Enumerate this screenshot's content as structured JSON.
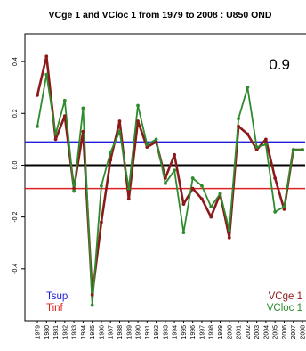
{
  "chart_data": {
    "type": "line",
    "title": "VCge 1 and VCloc 1 from 1979 to 2008 : U850 OND",
    "correlation_label": "0.9",
    "x": [
      1979,
      1980,
      1981,
      1982,
      1983,
      1984,
      1985,
      1986,
      1987,
      1988,
      1989,
      1990,
      1991,
      1992,
      1993,
      1994,
      1995,
      1996,
      1997,
      1998,
      1999,
      2000,
      2001,
      2002,
      2003,
      2004,
      2005,
      2006,
      2007,
      2008
    ],
    "ylim": [
      -0.6,
      0.5
    ],
    "yticks": [
      -0.4,
      -0.2,
      0.0,
      0.2,
      0.4
    ],
    "ytick_labels": [
      "-0.4",
      "-0.2",
      "0.0",
      "0.2",
      "0.4"
    ],
    "grid": false,
    "series": [
      {
        "name": "VCge 1",
        "color": "#8b1a1a",
        "values": [
          0.27,
          0.42,
          0.1,
          0.19,
          -0.09,
          0.13,
          -0.5,
          -0.22,
          0.02,
          0.17,
          -0.13,
          0.17,
          0.07,
          0.09,
          -0.05,
          0.04,
          -0.15,
          -0.09,
          -0.13,
          -0.2,
          -0.11,
          -0.28,
          0.15,
          0.12,
          0.06,
          0.1,
          -0.05,
          -0.17,
          0.06,
          0.06
        ]
      },
      {
        "name": "VCloc 1",
        "color": "#2e8b2e",
        "values": [
          0.15,
          0.35,
          0.12,
          0.25,
          -0.1,
          0.22,
          -0.54,
          -0.08,
          0.05,
          0.13,
          -0.09,
          0.23,
          0.08,
          0.1,
          -0.07,
          -0.02,
          -0.26,
          -0.05,
          -0.08,
          -0.16,
          -0.11,
          -0.25,
          0.18,
          0.3,
          0.07,
          0.08,
          -0.18,
          -0.16,
          0.06,
          0.06
        ]
      }
    ],
    "reference_lines": [
      {
        "name": "Tsup",
        "value": 0.09,
        "color": "#1f1fdd"
      },
      {
        "name": "Tinf",
        "value": -0.09,
        "color": "#dd2222"
      },
      {
        "name": "zero",
        "value": 0.0,
        "color": "#000000"
      }
    ],
    "legend_left": [
      {
        "label": "Tsup",
        "color": "#1f1fdd"
      },
      {
        "label": "Tinf",
        "color": "#dd2222"
      }
    ],
    "legend_right": [
      {
        "label": "VCge 1",
        "color": "#8b1a1a"
      },
      {
        "label": "VCloc 1",
        "color": "#2e8b2e"
      }
    ]
  }
}
